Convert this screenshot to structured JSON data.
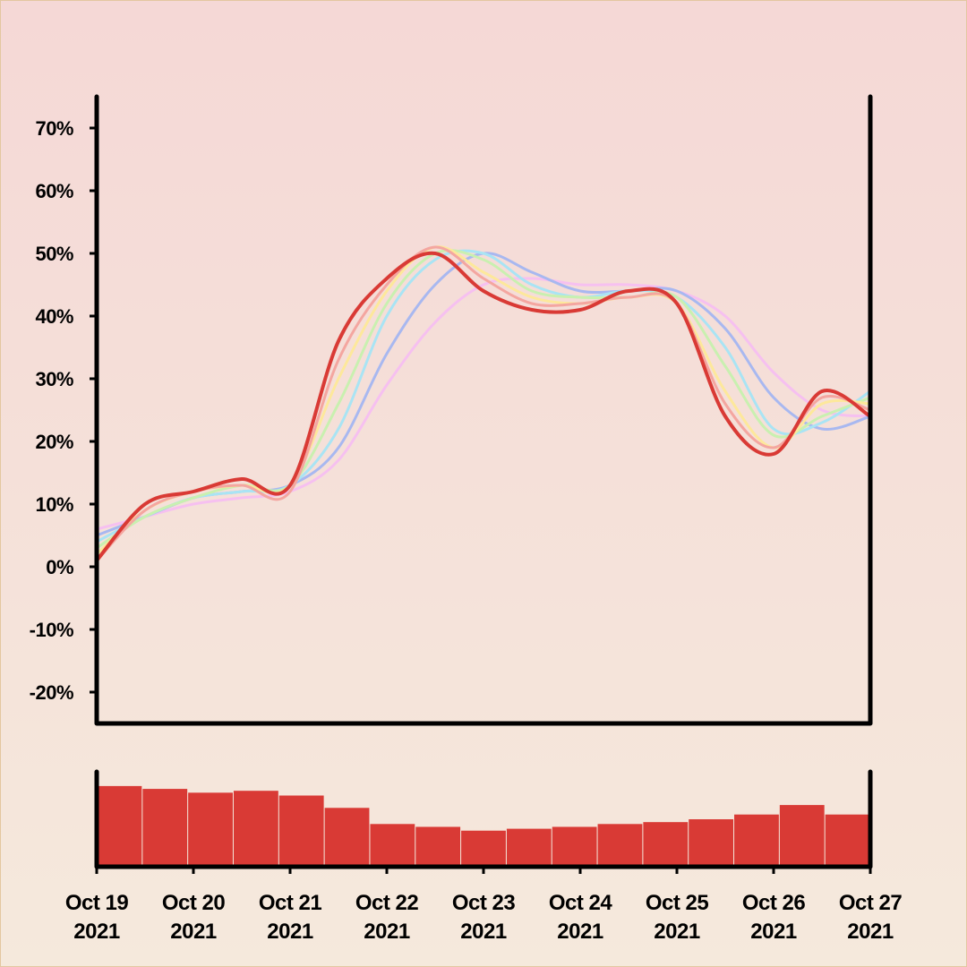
{
  "chart_data": [
    {
      "type": "line",
      "title": "",
      "xlabel": "",
      "ylabel": "",
      "ylim": [
        -25,
        75
      ],
      "y_ticks": [
        "-20%",
        "-10%",
        "0%",
        "10%",
        "20%",
        "30%",
        "40%",
        "50%",
        "60%",
        "70%"
      ],
      "y_tick_values": [
        -20,
        -10,
        0,
        10,
        20,
        30,
        40,
        50,
        60,
        70
      ],
      "grid": false,
      "legend": "none",
      "x": [
        "Oct 19 2021",
        "Oct 19 2021 12:00",
        "Oct 20 2021",
        "Oct 20 2021 12:00",
        "Oct 21 2021",
        "Oct 21 2021 12:00",
        "Oct 22 2021",
        "Oct 22 2021 12:00",
        "Oct 23 2021",
        "Oct 23 2021 12:00",
        "Oct 24 2021",
        "Oct 24 2021 12:00",
        "Oct 25 2021",
        "Oct 25 2021 12:00",
        "Oct 26 2021",
        "Oct 26 2021 12:00",
        "Oct 27 2021"
      ],
      "series": [
        {
          "color": "#d93a35",
          "values": [
            1,
            10,
            12,
            14,
            13,
            36,
            46,
            50,
            44,
            41,
            41,
            44,
            42,
            24,
            18,
            28,
            24
          ]
        },
        {
          "color": "#f4a6a0",
          "values": [
            1,
            9,
            12,
            13,
            12,
            33,
            45,
            51,
            46,
            42,
            42,
            43,
            42,
            26,
            19,
            27,
            25
          ]
        },
        {
          "color": "#fde89b",
          "values": [
            2,
            9,
            12,
            13,
            13,
            30,
            44,
            51,
            47,
            43,
            42,
            43,
            42,
            28,
            19,
            26,
            26
          ]
        },
        {
          "color": "#c9f0b0",
          "values": [
            3,
            8,
            11,
            13,
            13,
            26,
            42,
            50,
            49,
            44,
            43,
            43,
            43,
            32,
            21,
            24,
            27
          ]
        },
        {
          "color": "#a9e4f4",
          "values": [
            4,
            8,
            11,
            12,
            13,
            22,
            40,
            49,
            50,
            45,
            43,
            44,
            43,
            35,
            22,
            23,
            28
          ]
        },
        {
          "color": "#a8b8f0",
          "values": [
            5,
            8,
            11,
            12,
            13,
            19,
            34,
            45,
            50,
            47,
            44,
            44,
            44,
            38,
            27,
            22,
            24
          ]
        },
        {
          "color": "#f6c0f0",
          "values": [
            6,
            8,
            10,
            11,
            12,
            17,
            29,
            39,
            45,
            46,
            45,
            45,
            44,
            40,
            31,
            25,
            24
          ]
        }
      ]
    },
    {
      "type": "bar",
      "title": "",
      "x_ticks": [
        "Oct 19\n2021",
        "Oct 20\n2021",
        "Oct 21\n2021",
        "Oct 22\n2021",
        "Oct 23\n2021",
        "Oct 24\n2021",
        "Oct 25\n2021",
        "Oct 26\n2021",
        "Oct 27\n2021"
      ],
      "x_tick_lines": [
        [
          "Oct 19",
          "2021"
        ],
        [
          "Oct 20",
          "2021"
        ],
        [
          "Oct 21",
          "2021"
        ],
        [
          "Oct 22",
          "2021"
        ],
        [
          "Oct 23",
          "2021"
        ],
        [
          "Oct 24",
          "2021"
        ],
        [
          "Oct 25",
          "2021"
        ],
        [
          "Oct 26",
          "2021"
        ],
        [
          "Oct 27",
          "2021"
        ]
      ],
      "color": "#d93a35",
      "values": [
        0.85,
        0.82,
        0.78,
        0.8,
        0.75,
        0.62,
        0.45,
        0.42,
        0.38,
        0.4,
        0.42,
        0.45,
        0.47,
        0.5,
        0.55,
        0.65,
        0.55
      ]
    }
  ]
}
